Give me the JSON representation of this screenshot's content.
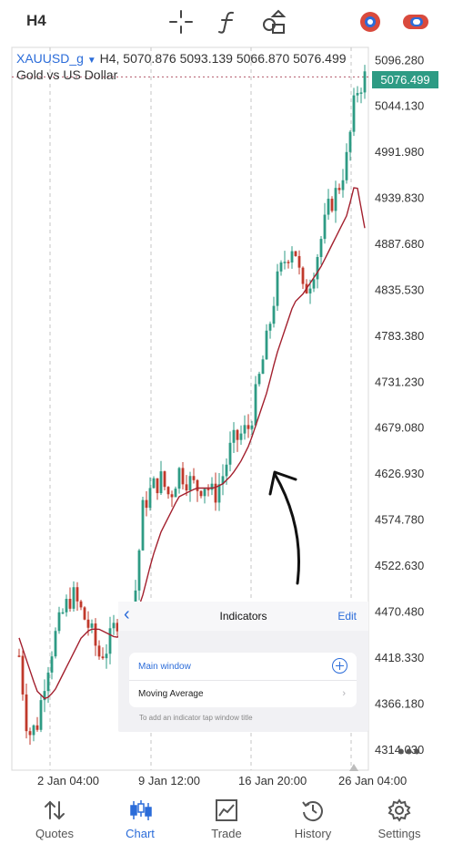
{
  "top_bar": {
    "timeframe": "H4",
    "icons": [
      "crosshair-icon",
      "function-icon",
      "objects-icon",
      "trade-signal-icon",
      "toggle-icon"
    ]
  },
  "chart": {
    "symbol": "XAUUSD_g",
    "header_prices": "H4, 5070.876 5093.139 5066.870 5076.499",
    "description": "Gold vs US Dollar",
    "current_price": "5076.499",
    "price_axis": [
      "5096.280",
      "5044.130",
      "4991.980",
      "4939.830",
      "4887.680",
      "4835.530",
      "4783.380",
      "4731.230",
      "4679.080",
      "4626.930",
      "4574.780",
      "4522.630",
      "4470.480",
      "4418.330",
      "4366.180",
      "4314.030"
    ],
    "time_axis": [
      "2 Jan 04:00",
      "9 Jan 12:00",
      "16 Jan 20:00",
      "26 Jan 04:00"
    ],
    "colors": {
      "bull": "#2e9b84",
      "bear": "#c0392b",
      "moving_average": "#a3202e",
      "annotation_arrow": "#111111"
    }
  },
  "chart_data": {
    "type": "candlestick",
    "instrument": "XAUUSD_g",
    "timeframe": "H4",
    "last_ohlc": {
      "open": 5070.876,
      "high": 5093.139,
      "low": 5066.87,
      "close": 5076.499
    },
    "ylim": [
      4290,
      5110
    ],
    "x_tick_labels": [
      "2 Jan 04:00",
      "9 Jan 12:00",
      "16 Jan 20:00",
      "26 Jan 04:00"
    ],
    "close_path": [
      4420,
      4330,
      4340,
      4400,
      4440,
      4470,
      4490,
      4470,
      4450,
      4420,
      4430,
      4460,
      4470,
      4480,
      4590,
      4610,
      4620,
      4600,
      4630,
      4620,
      4610,
      4615,
      4600,
      4625,
      4660,
      4670,
      4680,
      4730,
      4780,
      4840,
      4870,
      4890,
      4830,
      4850,
      4890,
      4930,
      4950,
      4985,
      5060,
      5076
    ],
    "moving_average": [
      4440,
      4410,
      4380,
      4370,
      4380,
      4400,
      4420,
      4440,
      4450,
      4450,
      4445,
      4440,
      4450,
      4460,
      4490,
      4530,
      4560,
      4580,
      4600,
      4605,
      4610,
      4610,
      4610,
      4615,
      4625,
      4640,
      4660,
      4690,
      4720,
      4760,
      4790,
      4820,
      4830,
      4845,
      4860,
      4880,
      4900,
      4920,
      4960,
      4905
    ]
  },
  "annotation": {
    "shape": "hand-drawn arrow pointing to moving average"
  },
  "indicators_panel": {
    "title": "Indicators",
    "edit_label": "Edit",
    "main_window_label": "Main window",
    "indicator_name": "Moving Average",
    "hint": "To add an indicator tap window title"
  },
  "bottom_nav": {
    "items": [
      {
        "label": "Quotes",
        "icon": "quotes-icon"
      },
      {
        "label": "Chart",
        "icon": "candles-icon",
        "active": true
      },
      {
        "label": "Trade",
        "icon": "trade-chart-icon"
      },
      {
        "label": "History",
        "icon": "history-icon"
      },
      {
        "label": "Settings",
        "icon": "gear-icon"
      }
    ]
  }
}
